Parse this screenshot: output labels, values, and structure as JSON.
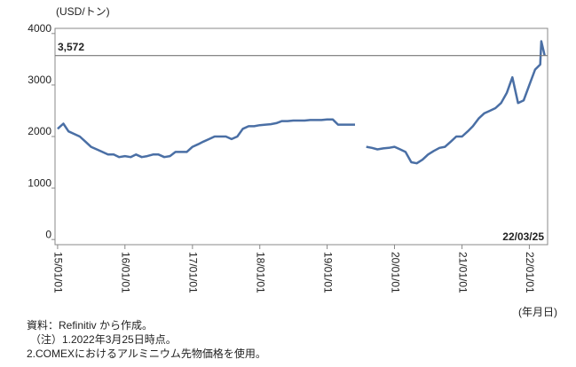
{
  "chart_data": {
    "type": "line",
    "y_axis_label": "(USD/トン)",
    "x_axis_label": "(年月日)",
    "x": [
      "15/01/01",
      "15/02/01",
      "15/03/01",
      "15/04/01",
      "15/05/01",
      "15/06/01",
      "15/07/01",
      "15/08/01",
      "15/09/01",
      "15/10/01",
      "15/11/01",
      "15/12/01",
      "16/01/01",
      "16/02/01",
      "16/03/01",
      "16/04/01",
      "16/05/01",
      "16/06/01",
      "16/07/01",
      "16/08/01",
      "16/09/01",
      "16/10/01",
      "16/11/01",
      "16/12/01",
      "17/01/01",
      "17/02/01",
      "17/03/01",
      "17/04/01",
      "17/05/01",
      "17/06/01",
      "17/07/01",
      "17/08/01",
      "17/09/01",
      "17/10/01",
      "17/11/01",
      "17/12/01",
      "18/01/01",
      "18/02/01",
      "18/03/01",
      "18/04/01",
      "18/05/01",
      "18/06/01",
      "18/07/01",
      "18/08/01",
      "18/09/01",
      "18/10/01",
      "18/11/01",
      "18/12/01",
      "19/01/01",
      "19/02/01",
      "19/03/01",
      "19/04/01",
      "19/05/01",
      "19/06/01",
      "19/07/01",
      "19/08/01",
      "19/09/01",
      "19/10/01",
      "19/11/01",
      "19/12/01",
      "20/01/01",
      "20/02/01",
      "20/03/01",
      "20/04/01",
      "20/05/01",
      "20/06/01",
      "20/07/01",
      "20/08/01",
      "20/09/01",
      "20/10/01",
      "20/11/01",
      "20/12/01",
      "21/01/01",
      "21/02/01",
      "21/03/01",
      "21/04/01",
      "21/05/01",
      "21/06/01",
      "21/07/01",
      "21/08/01",
      "21/09/01",
      "21/10/01",
      "21/11/01",
      "21/12/01",
      "22/01/01",
      "22/02/01",
      "22/03/01",
      "22/03/07",
      "22/03/25"
    ],
    "series": [
      {
        "color": "#4a6fa5",
        "values": [
          2150,
          2250,
          2100,
          2050,
          2000,
          1900,
          1800,
          1750,
          1700,
          1650,
          1650,
          1600,
          1620,
          1600,
          1650,
          1600,
          1620,
          1650,
          1650,
          1600,
          1620,
          1700,
          1700,
          1700,
          1800,
          1850,
          1900,
          1950,
          2000,
          2000,
          2000,
          1950,
          2000,
          2150,
          2200,
          2200,
          2220,
          2230,
          2240,
          2260,
          2300,
          2300,
          2310,
          2310,
          2310,
          2320,
          2320,
          2320,
          2330,
          2330,
          2230,
          2230,
          2230,
          2230,
          null,
          1800,
          1780,
          1750,
          1770,
          1780,
          1800,
          1750,
          1700,
          1500,
          1480,
          1550,
          1650,
          1720,
          1780,
          1800,
          1900,
          2000,
          2000,
          2100,
          2200,
          2350,
          2450,
          2500,
          2550,
          2650,
          2850,
          3150,
          2650,
          2700,
          3000,
          3300,
          3400,
          3850,
          3572
        ]
      }
    ],
    "xlim": [
      "14/12/18",
      "22/04/10"
    ],
    "xticks": [
      "15/01/01",
      "16/01/01",
      "17/01/01",
      "18/01/01",
      "19/01/01",
      "20/01/01",
      "21/01/01",
      "22/01/01"
    ],
    "ylim": [
      -100,
      4100
    ],
    "yticks": [
      0,
      1000,
      2000,
      3000,
      4000
    ],
    "reference_line": {
      "value": 3572,
      "label": "3,572"
    },
    "notes": [
      "資料：Refinitiv から作成。",
      "（注）1.2022年3月25日時点。",
      "2.COMEXにおけるアルミニウム先物価格を使用。"
    ]
  }
}
